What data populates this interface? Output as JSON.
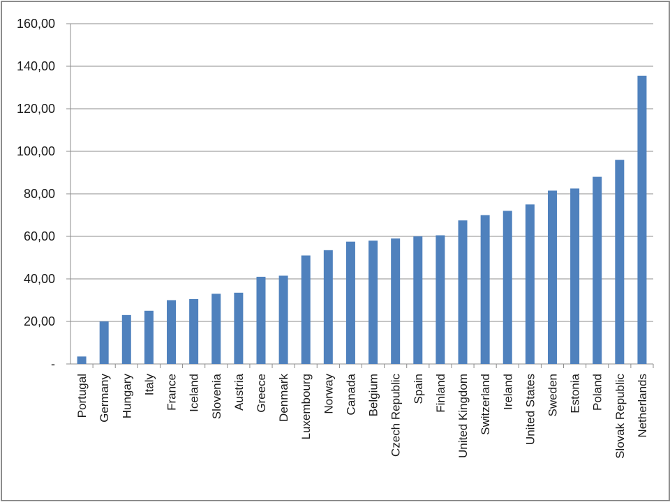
{
  "chart_data": {
    "type": "bar",
    "title": "",
    "xlabel": "",
    "ylabel": "",
    "ylim": [
      0,
      160
    ],
    "grid": true,
    "legend": "none",
    "bar_color": "#4f81bd",
    "y_ticks": [
      {
        "value": 0,
        "label": "-"
      },
      {
        "value": 20,
        "label": "20,00"
      },
      {
        "value": 40,
        "label": "40,00"
      },
      {
        "value": 60,
        "label": "60,00"
      },
      {
        "value": 80,
        "label": "80,00"
      },
      {
        "value": 100,
        "label": "100,00"
      },
      {
        "value": 120,
        "label": "120,00"
      },
      {
        "value": 140,
        "label": "140,00"
      },
      {
        "value": 160,
        "label": "160,00"
      }
    ],
    "categories": [
      "Portugal",
      "Germany",
      "Hungary",
      "Italy",
      "France",
      "Iceland",
      "Slovenia",
      "Austria",
      "Greece",
      "Denmark",
      "Luxembourg",
      "Norway",
      "Canada",
      "Belgium",
      "Czech Republic",
      "Spain",
      "Finland",
      "United Kingdom",
      "Switzerland",
      "Ireland",
      "United States",
      "Sweden",
      "Estonia",
      "Poland",
      "Slovak Republic",
      "Netherlands"
    ],
    "values": [
      3.5,
      20.0,
      23.0,
      25.0,
      30.0,
      30.5,
      33.0,
      33.5,
      41.0,
      41.5,
      51.0,
      53.5,
      57.5,
      58.0,
      59.0,
      60.0,
      60.5,
      67.5,
      70.0,
      72.0,
      75.0,
      81.5,
      82.5,
      88.0,
      96.0,
      135.5
    ]
  }
}
